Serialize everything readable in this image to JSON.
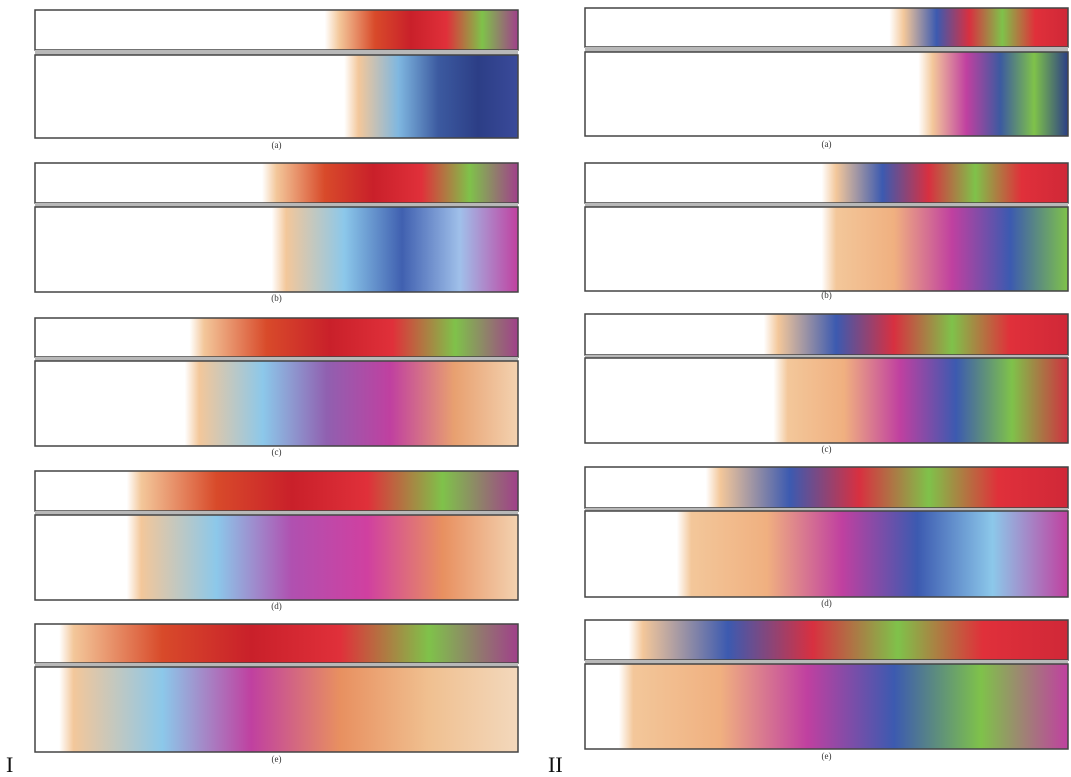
{
  "columns": [
    {
      "label": "I",
      "panels": [
        "(a)",
        "(b)",
        "(c)",
        "(d)",
        "(e)"
      ]
    },
    {
      "label": "II",
      "panels": [
        "(a)",
        "(b)",
        "(c)",
        "(d)",
        "(e)"
      ]
    }
  ]
}
